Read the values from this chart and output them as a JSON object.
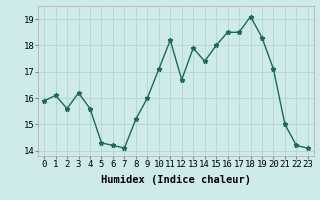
{
  "x": [
    0,
    1,
    2,
    3,
    4,
    5,
    6,
    7,
    8,
    9,
    10,
    11,
    12,
    13,
    14,
    15,
    16,
    17,
    18,
    19,
    20,
    21,
    22,
    23
  ],
  "y": [
    15.9,
    16.1,
    15.6,
    16.2,
    15.6,
    14.3,
    14.2,
    14.1,
    15.2,
    16.0,
    17.1,
    18.2,
    16.7,
    17.9,
    17.4,
    18.0,
    18.5,
    18.5,
    19.1,
    18.3,
    17.1,
    15.0,
    14.2,
    14.1
  ],
  "line_color": "#1a6b5a",
  "bg_color": "#ceeaea",
  "grid_color": "#b8d8d8",
  "xlabel": "Humidex (Indice chaleur)",
  "ylim": [
    13.8,
    19.5
  ],
  "yticks": [
    14,
    15,
    16,
    17,
    18,
    19
  ],
  "xticks": [
    0,
    1,
    2,
    3,
    4,
    5,
    6,
    7,
    8,
    9,
    10,
    11,
    12,
    13,
    14,
    15,
    16,
    17,
    18,
    19,
    20,
    21,
    22,
    23
  ],
  "xlabel_fontsize": 7.5,
  "tick_fontsize": 6.5,
  "marker": "*",
  "marker_size": 3.5,
  "line_width": 1.0
}
